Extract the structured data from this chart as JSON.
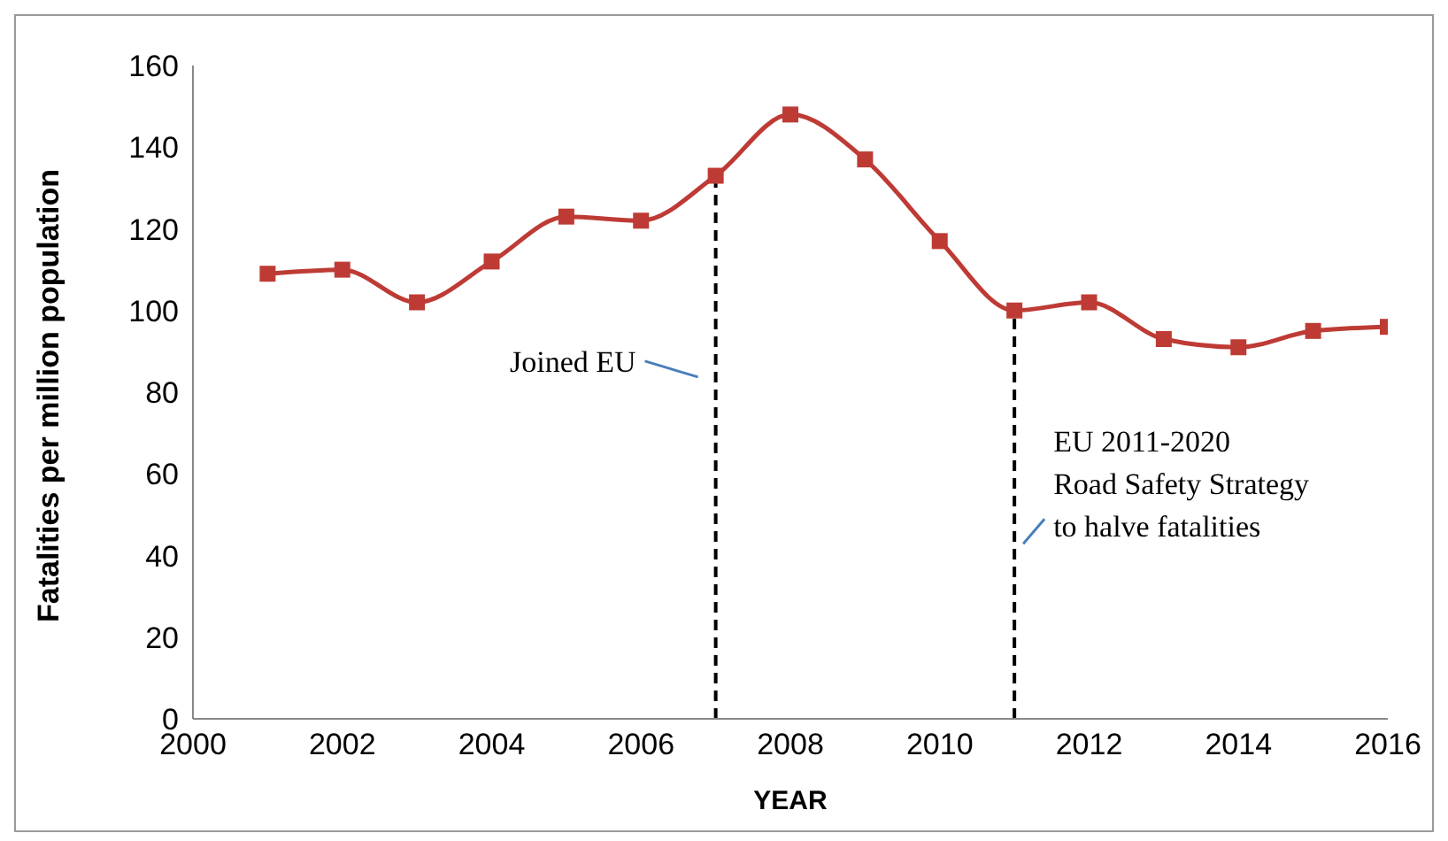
{
  "chart_data": {
    "type": "line",
    "xlabel": "YEAR",
    "ylabel": "Fatalities per million population",
    "x": [
      2001,
      2002,
      2003,
      2004,
      2005,
      2006,
      2007,
      2008,
      2009,
      2010,
      2011,
      2012,
      2013,
      2014,
      2015,
      2016
    ],
    "series": [
      {
        "color": "#be3b35",
        "values": [
          109,
          110,
          102,
          112,
          123,
          122,
          133,
          148,
          137,
          117,
          100,
          102,
          93,
          91,
          95,
          96
        ]
      }
    ],
    "xlim": [
      2000,
      2016
    ],
    "xticks": [
      2000,
      2002,
      2004,
      2006,
      2008,
      2010,
      2012,
      2014,
      2016
    ],
    "ylim": [
      0,
      160
    ],
    "yticks": [
      0,
      20,
      40,
      60,
      80,
      100,
      120,
      140,
      160
    ],
    "marker": "square",
    "line_style": "solid",
    "grid": false,
    "legend": false,
    "ref_lines": [
      {
        "axis": "x",
        "value": 2007,
        "color": "#000000",
        "line_style": "dashed"
      },
      {
        "axis": "x",
        "value": 2011,
        "color": "#000000",
        "line_style": "dashed"
      }
    ],
    "annotations": [
      {
        "text": "Joined EU",
        "x": 2007,
        "y": 85
      },
      {
        "text": "EU 2011-2020\nRoad Safety Strategy\nto halve fatalities",
        "x": 2011,
        "y": 55
      }
    ]
  }
}
